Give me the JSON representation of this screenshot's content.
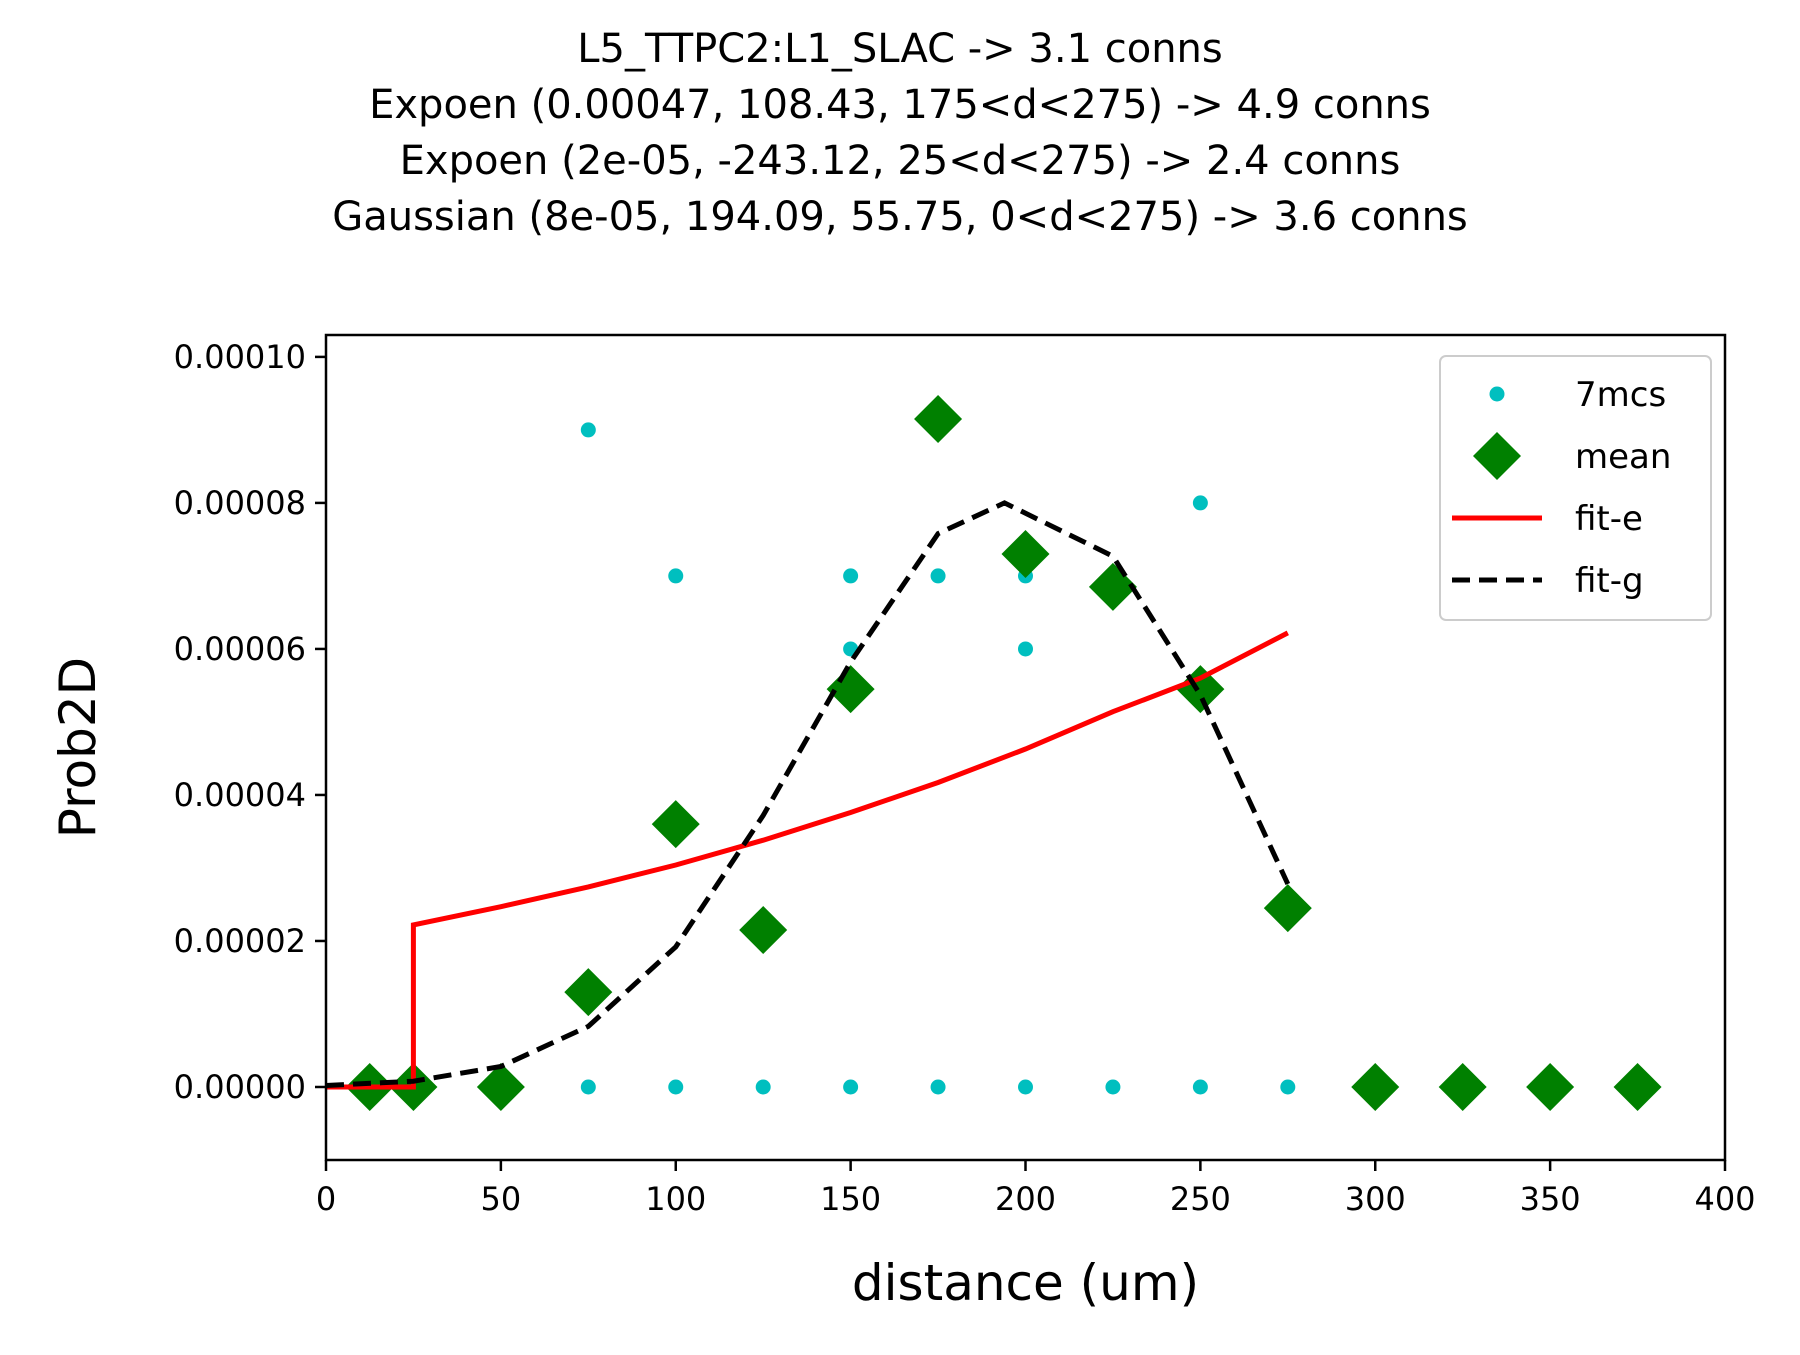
{
  "chart_data": {
    "type": "scatter",
    "title_lines": [
      "L5_TTPC2:L1_SLAC -> 3.1 conns",
      "Expoen (0.00047, 108.43, 175<d<275) -> 4.9 conns",
      "Expoen (2e-05, -243.12, 25<d<275) -> 2.4 conns",
      "Gaussian (8e-05, 194.09, 55.75, 0<d<275) -> 3.6 conns"
    ],
    "xlabel": "distance (um)",
    "ylabel": "Prob2D",
    "xlim": [
      0,
      400
    ],
    "ylim": [
      -1e-05,
      0.000103
    ],
    "xticks": [
      0,
      50,
      100,
      150,
      200,
      250,
      300,
      350,
      400
    ],
    "yticks": [
      0,
      2e-05,
      4e-05,
      6e-05,
      8e-05,
      0.0001
    ],
    "ytick_labels": [
      "0.00000",
      "0.00002",
      "0.00004",
      "0.00006",
      "0.00008",
      "0.00010"
    ],
    "grid": false,
    "legend_position": "top-right",
    "series": [
      {
        "name": "7mcs",
        "kind": "points",
        "marker": "circle",
        "color": "#00bfbf",
        "points": [
          [
            75,
            9e-05
          ],
          [
            75,
            0
          ],
          [
            100,
            7e-05
          ],
          [
            100,
            0
          ],
          [
            125,
            0
          ],
          [
            150,
            7e-05
          ],
          [
            150,
            6e-05
          ],
          [
            150,
            0
          ],
          [
            175,
            7e-05
          ],
          [
            175,
            0
          ],
          [
            200,
            7e-05
          ],
          [
            200,
            6e-05
          ],
          [
            200,
            0
          ],
          [
            225,
            0
          ],
          [
            250,
            8e-05
          ],
          [
            250,
            0
          ],
          [
            275,
            0
          ]
        ]
      },
      {
        "name": "mean",
        "kind": "points",
        "marker": "diamond",
        "color": "#008000",
        "points": [
          [
            12.5,
            0
          ],
          [
            25,
            0
          ],
          [
            50,
            0
          ],
          [
            75,
            1.3e-05
          ],
          [
            100,
            3.6e-05
          ],
          [
            125,
            2.15e-05
          ],
          [
            150,
            5.45e-05
          ],
          [
            175,
            9.15e-05
          ],
          [
            200,
            7.3e-05
          ],
          [
            225,
            6.85e-05
          ],
          [
            250,
            5.45e-05
          ],
          [
            275,
            2.45e-05
          ],
          [
            300,
            0
          ],
          [
            325,
            0
          ],
          [
            350,
            0
          ],
          [
            375,
            0
          ]
        ]
      },
      {
        "name": "fit-e",
        "kind": "line",
        "style": "solid",
        "color": "#ff0000",
        "points": [
          [
            0,
            0
          ],
          [
            25,
            0
          ],
          [
            25,
            2.22e-05
          ],
          [
            50,
            2.47e-05
          ],
          [
            75,
            2.74e-05
          ],
          [
            100,
            3.04e-05
          ],
          [
            125,
            3.38e-05
          ],
          [
            150,
            3.76e-05
          ],
          [
            175,
            4.17e-05
          ],
          [
            200,
            4.63e-05
          ],
          [
            225,
            5.14e-05
          ],
          [
            250,
            5.6e-05
          ],
          [
            275,
            6.22e-05
          ]
        ]
      },
      {
        "name": "fit-g",
        "kind": "line",
        "style": "dashed",
        "color": "#000000",
        "points": [
          [
            0,
            2e-07
          ],
          [
            25,
            8e-07
          ],
          [
            50,
            2.8e-06
          ],
          [
            75,
            8.3e-06
          ],
          [
            100,
            1.92e-05
          ],
          [
            125,
            3.72e-05
          ],
          [
            150,
            5.82e-05
          ],
          [
            175,
            7.58e-05
          ],
          [
            194,
            8e-05
          ],
          [
            225,
            7.27e-05
          ],
          [
            250,
            5.37e-05
          ],
          [
            275,
            2.78e-05
          ]
        ]
      }
    ]
  }
}
